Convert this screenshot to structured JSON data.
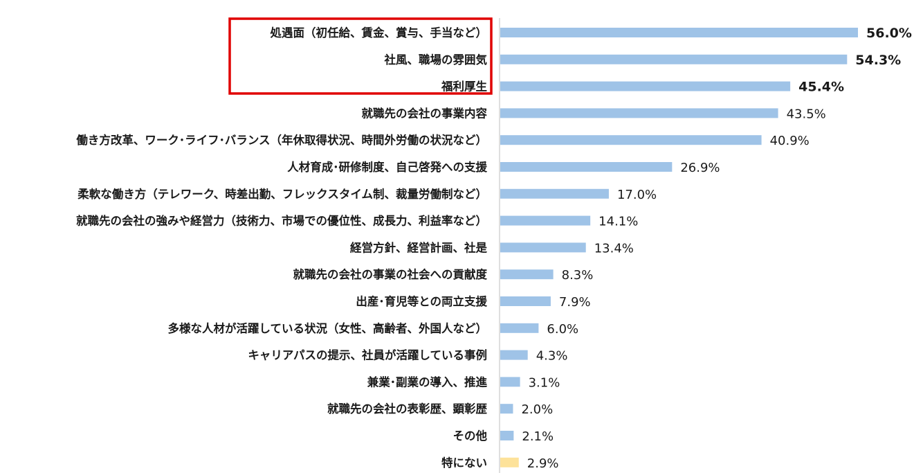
{
  "chart_data": {
    "type": "bar",
    "orientation": "horizontal",
    "title": "",
    "xlabel": "",
    "ylabel": "",
    "xlim": [
      0,
      56
    ],
    "grid": false,
    "legend": "none",
    "categories": [
      "処遇面（初任給、賃金、賞与、手当など）",
      "社風、職場の雰囲気",
      "福利厚生",
      "就職先の会社の事業内容",
      "働き方改革、ワーク･ライフ･バランス（年休取得状況、時間外労働の状況など）",
      "人材育成･研修制度、自己啓発への支援",
      "柔軟な働き方（テレワーク、時差出勤、フレックスタイム制、裁量労働制など）",
      "就職先の会社の強みや経営力（技術力、市場での優位性、成長力、利益率など）",
      "経営方針、経営計画、社是",
      "就職先の会社の事業の社会への貢献度",
      "出産･育児等との両立支援",
      "多様な人材が活躍している状況（女性、高齢者、外国人など）",
      "キャリアパスの提示、社員が活躍している事例",
      "兼業･副業の導入、推進",
      "就職先の会社の表彰歴、顕彰歴",
      "その他",
      "特にない"
    ],
    "values": [
      56.0,
      54.3,
      45.4,
      43.5,
      40.9,
      26.9,
      17.0,
      14.1,
      13.4,
      8.3,
      7.9,
      6.0,
      4.3,
      3.1,
      2.0,
      2.1,
      2.9
    ],
    "value_labels": [
      "56.0%",
      "54.3%",
      "45.4%",
      "43.5%",
      "40.9%",
      "26.9%",
      "17.0%",
      "14.1%",
      "13.4%",
      "8.3%",
      "7.9%",
      "6.0%",
      "4.3%",
      "3.1%",
      "2.0%",
      "2.1%",
      "2.9%"
    ],
    "highlighted_count": 3,
    "colors": {
      "bar": "#9fc3e7",
      "bar_last": "#fde29a",
      "highlight_text": "#ff0000",
      "highlight_box": "#e00000",
      "axis": "#bfbfbf",
      "label": "#1a1a1a"
    }
  }
}
